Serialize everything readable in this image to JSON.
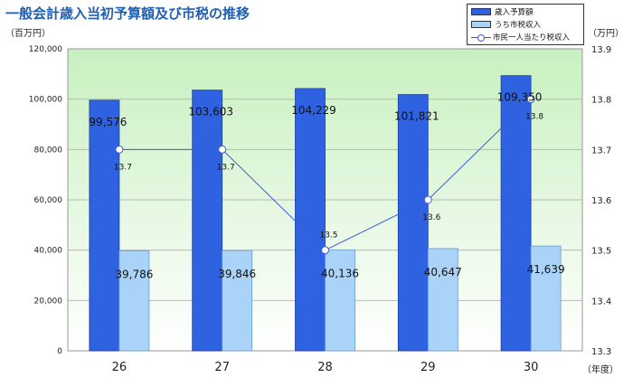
{
  "title": "一般会計歳入当初予算額及び市税の推移",
  "units": {
    "left": "（百万円）",
    "right": "（万円）",
    "x": "（年度）"
  },
  "legend": {
    "budget": "歳入予算額",
    "tax": "うち市税収入",
    "per_capita": "市民一人当たり税収入"
  },
  "colors": {
    "budget": "#2f62e0",
    "tax": "#a9d3f7",
    "line": "#3a5bd9",
    "bg_top": "#c8f0c0",
    "bg_bottom": "#ffffff"
  },
  "chart_data": {
    "type": "bar",
    "categories": [
      "26",
      "27",
      "28",
      "29",
      "30"
    ],
    "series": [
      {
        "name": "歳入予算額",
        "values": [
          99576,
          103603,
          104229,
          101821,
          109350
        ],
        "labels": [
          "99,576",
          "103,603",
          "104,229",
          "101,821",
          "109,350"
        ]
      },
      {
        "name": "うち市税収入",
        "values": [
          39786,
          39846,
          40136,
          40647,
          41639
        ],
        "labels": [
          "39,786",
          "39,846",
          "40,136",
          "40,647",
          "41,639"
        ]
      },
      {
        "name": "市民一人当たり税収入",
        "type": "line",
        "axis": "right",
        "values": [
          13.7,
          13.7,
          13.5,
          13.6,
          13.8
        ],
        "labels": [
          "13.7",
          "13.7",
          "13.5",
          "13.6",
          "13.8"
        ]
      }
    ],
    "y_left": {
      "min": 0,
      "max": 120000,
      "ticks": [
        "0",
        "20,000",
        "40,000",
        "60,000",
        "80,000",
        "100,000",
        "120,000"
      ]
    },
    "y_right": {
      "min": 13.3,
      "max": 13.9,
      "ticks": [
        "13.3",
        "13.4",
        "13.5",
        "13.6",
        "13.7",
        "13.8",
        "13.9"
      ]
    },
    "grid": true,
    "legend_position": "top-right"
  }
}
